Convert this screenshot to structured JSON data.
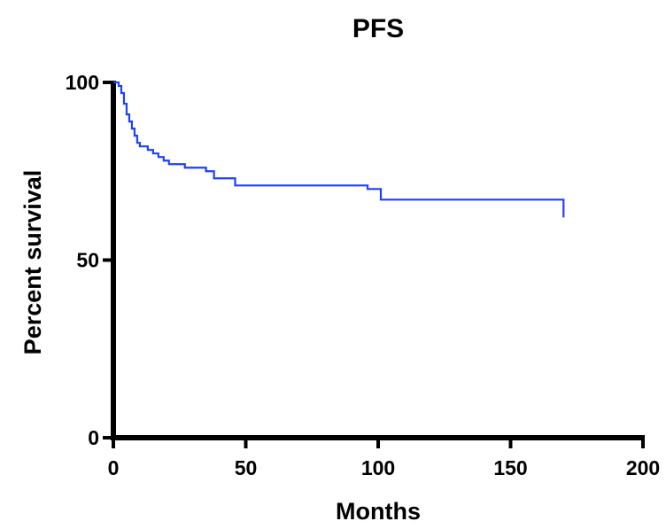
{
  "chart_data": {
    "type": "line",
    "title": "PFS",
    "xlabel": "Months",
    "ylabel": "Percent survival",
    "xlim": [
      0,
      200
    ],
    "ylim": [
      0,
      100
    ],
    "x_ticks": [
      0,
      50,
      100,
      150,
      200
    ],
    "y_ticks": [
      0,
      50,
      100
    ],
    "grid": false,
    "step": true,
    "line_color": "#1f3fff",
    "axis_color": "#000000",
    "series": [
      {
        "x": [
          0,
          2,
          3,
          4,
          5,
          6,
          7,
          8,
          9,
          10,
          13,
          15,
          17,
          19,
          21,
          27,
          35,
          38,
          46,
          96,
          101,
          170
        ],
        "y": [
          100,
          99,
          97,
          94,
          91,
          89,
          87,
          85,
          83,
          82,
          81,
          80,
          79,
          78,
          77,
          76,
          75,
          73,
          71,
          70,
          67,
          62
        ]
      }
    ]
  }
}
